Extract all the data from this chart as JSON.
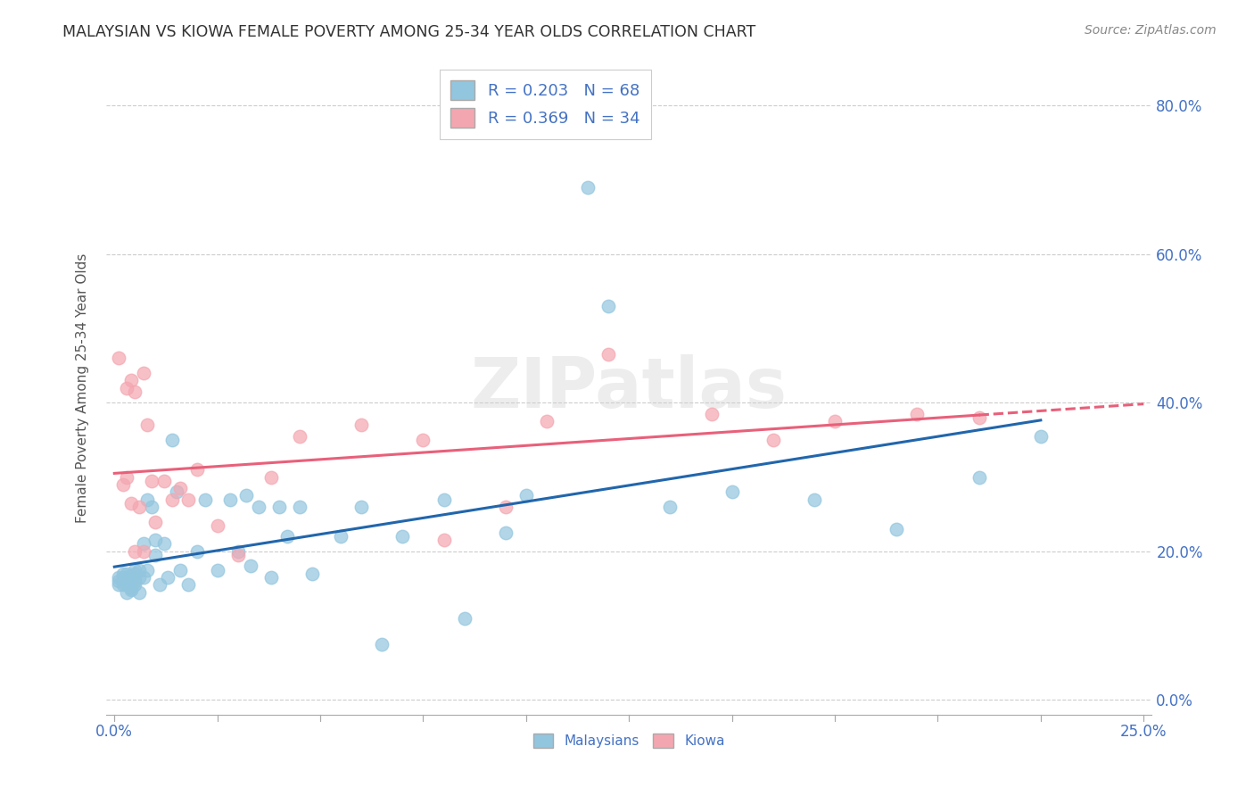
{
  "title": "MALAYSIAN VS KIOWA FEMALE POVERTY AMONG 25-34 YEAR OLDS CORRELATION CHART",
  "source": "Source: ZipAtlas.com",
  "ylabel": "Female Poverty Among 25-34 Year Olds",
  "xlim": [
    -0.002,
    0.252
  ],
  "ylim": [
    -0.02,
    0.86
  ],
  "xtick_positions": [
    0.0,
    0.025,
    0.05,
    0.075,
    0.1,
    0.125,
    0.15,
    0.175,
    0.2,
    0.225,
    0.25
  ],
  "xtick_labels_show": {
    "0.0": "0.0%",
    "0.25": "25.0%"
  },
  "ytick_positions": [
    0.0,
    0.2,
    0.4,
    0.6,
    0.8
  ],
  "ytick_labels": [
    "0.0%",
    "20.0%",
    "40.0%",
    "60.0%",
    "80.0%"
  ],
  "R_malaysian": 0.203,
  "N_malaysian": 68,
  "R_kiowa": 0.369,
  "N_kiowa": 34,
  "color_malaysian": "#92c5de",
  "color_kiowa": "#f4a6b0",
  "line_color_malaysian": "#2166ac",
  "line_color_kiowa": "#e8607a",
  "watermark": "ZIPatlas",
  "malaysian_x": [
    0.001,
    0.001,
    0.001,
    0.002,
    0.002,
    0.002,
    0.002,
    0.003,
    0.003,
    0.003,
    0.003,
    0.003,
    0.003,
    0.004,
    0.004,
    0.004,
    0.004,
    0.004,
    0.005,
    0.005,
    0.005,
    0.005,
    0.006,
    0.006,
    0.006,
    0.007,
    0.007,
    0.008,
    0.008,
    0.009,
    0.01,
    0.01,
    0.011,
    0.012,
    0.013,
    0.014,
    0.015,
    0.016,
    0.018,
    0.02,
    0.022,
    0.025,
    0.028,
    0.03,
    0.032,
    0.033,
    0.035,
    0.038,
    0.04,
    0.042,
    0.045,
    0.048,
    0.055,
    0.06,
    0.065,
    0.07,
    0.08,
    0.085,
    0.095,
    0.1,
    0.115,
    0.12,
    0.135,
    0.15,
    0.17,
    0.19,
    0.21,
    0.225
  ],
  "malaysian_y": [
    0.165,
    0.16,
    0.155,
    0.16,
    0.155,
    0.17,
    0.165,
    0.155,
    0.165,
    0.16,
    0.165,
    0.17,
    0.145,
    0.155,
    0.16,
    0.15,
    0.148,
    0.165,
    0.155,
    0.17,
    0.16,
    0.175,
    0.145,
    0.165,
    0.175,
    0.21,
    0.165,
    0.175,
    0.27,
    0.26,
    0.195,
    0.215,
    0.155,
    0.21,
    0.165,
    0.35,
    0.28,
    0.175,
    0.155,
    0.2,
    0.27,
    0.175,
    0.27,
    0.2,
    0.275,
    0.18,
    0.26,
    0.165,
    0.26,
    0.22,
    0.26,
    0.17,
    0.22,
    0.26,
    0.075,
    0.22,
    0.27,
    0.11,
    0.225,
    0.275,
    0.69,
    0.53,
    0.26,
    0.28,
    0.27,
    0.23,
    0.3,
    0.355
  ],
  "kiowa_x": [
    0.001,
    0.002,
    0.003,
    0.003,
    0.004,
    0.004,
    0.005,
    0.005,
    0.006,
    0.007,
    0.007,
    0.008,
    0.009,
    0.01,
    0.012,
    0.014,
    0.016,
    0.018,
    0.02,
    0.025,
    0.03,
    0.038,
    0.045,
    0.06,
    0.075,
    0.08,
    0.095,
    0.105,
    0.12,
    0.145,
    0.16,
    0.175,
    0.195,
    0.21
  ],
  "kiowa_y": [
    0.46,
    0.29,
    0.3,
    0.42,
    0.43,
    0.265,
    0.415,
    0.2,
    0.26,
    0.44,
    0.2,
    0.37,
    0.295,
    0.24,
    0.295,
    0.27,
    0.285,
    0.27,
    0.31,
    0.235,
    0.195,
    0.3,
    0.355,
    0.37,
    0.35,
    0.215,
    0.26,
    0.375,
    0.465,
    0.385,
    0.35,
    0.375,
    0.385,
    0.38
  ]
}
